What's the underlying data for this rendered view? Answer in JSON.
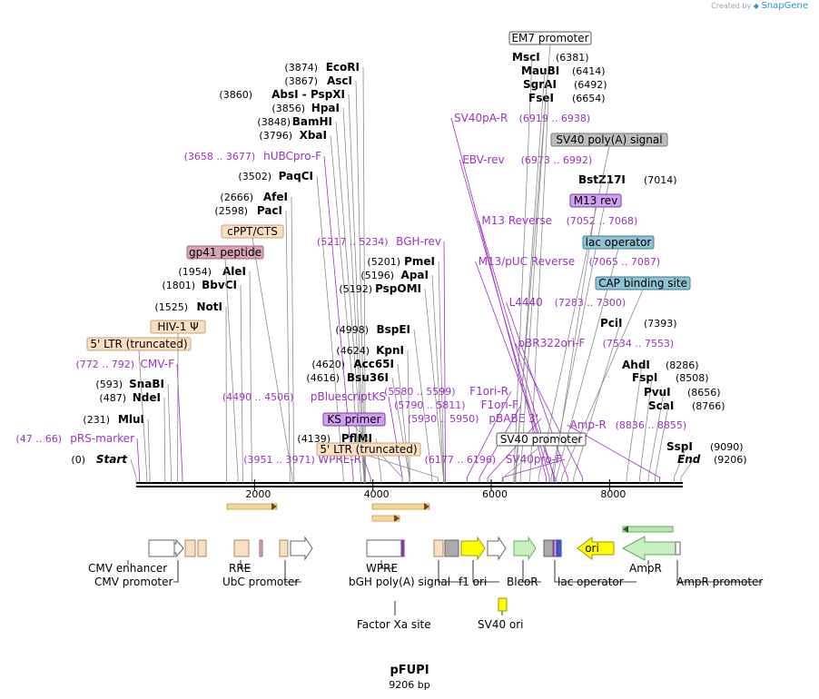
{
  "credit": {
    "prefix": "Created by",
    "brand": "SnapGene"
  },
  "plasmid": {
    "name": "pFUPI",
    "length": "9206 bp"
  },
  "colors": {
    "site": "#000000",
    "primer": "#9b30c8",
    "leader": "#7a7a7a",
    "primer_line": "#9b30c8"
  },
  "axis": {
    "ticks": [
      {
        "bp": 2000,
        "label": "2000"
      },
      {
        "bp": 4000,
        "label": "4000"
      },
      {
        "bp": 6000,
        "label": "6000"
      },
      {
        "bp": 8000,
        "label": "8000"
      }
    ]
  },
  "sites": [
    {
      "pos": "(0)",
      "name": "Start",
      "italic": true,
      "bp": 0
    },
    {
      "pos": "(231)",
      "name": "MluI",
      "bp": 231
    },
    {
      "pos": "(487)",
      "name": "NdeI",
      "bp": 487
    },
    {
      "pos": "(593)",
      "name": "SnaBI",
      "bp": 593
    },
    {
      "pos": "(1525)",
      "name": "NotI",
      "bp": 1525
    },
    {
      "pos": "(1801)",
      "name": "BbvCI",
      "bp": 1801
    },
    {
      "pos": "(1954)",
      "name": "AleI",
      "bp": 1954
    },
    {
      "pos": "(2598)",
      "name": "PacI",
      "bp": 2598
    },
    {
      "pos": "(2666)",
      "name": "AfeI",
      "bp": 2666
    },
    {
      "pos": "(3502)",
      "name": "PaqCI",
      "bp": 3502
    },
    {
      "pos": "(3796)",
      "name": "XbaI",
      "bp": 3796
    },
    {
      "pos": "(3848)",
      "name": "BamHI",
      "bp": 3848
    },
    {
      "pos": "(3856)",
      "name": "HpaI",
      "bp": 3856
    },
    {
      "pos": "(3860)",
      "name": "AbsI - PspXI",
      "bp": 3860
    },
    {
      "pos": "(3867)",
      "name": "AscI",
      "bp": 3867
    },
    {
      "pos": "(3874)",
      "name": "EcoRI",
      "bp": 3874
    },
    {
      "pos": "(4139)",
      "name": "PflMI",
      "bp": 4139
    },
    {
      "pos": "(4616)",
      "name": "Bsu36I",
      "bp": 4616
    },
    {
      "pos": "(4620)",
      "name": "Acc65I",
      "bp": 4620
    },
    {
      "pos": "(4624)",
      "name": "KpnI",
      "bp": 4624
    },
    {
      "pos": "(4998)",
      "name": "BspEI",
      "bp": 4998
    },
    {
      "pos": "(5192)",
      "name": "PspOMI",
      "bp": 5192
    },
    {
      "pos": "(5196)",
      "name": "ApaI",
      "bp": 5196
    },
    {
      "pos": "(5201)",
      "name": "PmeI",
      "bp": 5201
    },
    {
      "pos": "(6381)",
      "name": "MscI",
      "bp": 6381
    },
    {
      "pos": "(6414)",
      "name": "MauBI",
      "bp": 6414
    },
    {
      "pos": "(6492)",
      "name": "SgrAI",
      "bp": 6492
    },
    {
      "pos": "(6654)",
      "name": "FseI",
      "bp": 6654
    },
    {
      "pos": "(7014)",
      "name": "BstZ17I",
      "bp": 7014
    },
    {
      "pos": "(7393)",
      "name": "PciI",
      "bp": 7393
    },
    {
      "pos": "(8286)",
      "name": "AhdI",
      "bp": 8286
    },
    {
      "pos": "(8508)",
      "name": "FspI",
      "bp": 8508
    },
    {
      "pos": "(8656)",
      "name": "PvuI",
      "bp": 8656
    },
    {
      "pos": "(8766)",
      "name": "ScaI",
      "bp": 8766
    },
    {
      "pos": "(9090)",
      "name": "SspI",
      "bp": 9090
    },
    {
      "pos": "(9206)",
      "name": "End",
      "italic": true,
      "bp": 9206
    }
  ],
  "primers": [
    {
      "range": "(47 .. 66)",
      "name": "pRS-marker",
      "bp": 56
    },
    {
      "range": "(772 .. 792)",
      "name": "CMV-F",
      "bp": 782
    },
    {
      "range": "(3658 .. 3677)",
      "name": "hUBCpro-F",
      "bp": 3667
    },
    {
      "range": "(3951 .. 3971)",
      "name": "WPRE-R",
      "bp": 3961
    },
    {
      "range": "(4490 .. 4506)",
      "name": "pBluescriptKS",
      "bp": 4498
    },
    {
      "range": "(5217 .. 5234)",
      "name": "BGH-rev",
      "bp": 5225
    },
    {
      "range": "(5580 .. 5599)",
      "name": "F1ori-R",
      "bp": 5590
    },
    {
      "range": "(5790 .. 5811)",
      "name": "F1ori-F",
      "bp": 5800
    },
    {
      "range": "(5930 .. 5950)",
      "name": "pBABE 3'",
      "bp": 5940
    },
    {
      "range": "(6177 .. 6196)",
      "name": "SV40pro-F",
      "bp": 6187
    },
    {
      "range": "(6919 .. 6938)",
      "name": "SV40pA-R",
      "bp": 6929
    },
    {
      "range": "(6973 .. 6992)",
      "name": "EBV-rev",
      "bp": 6983
    },
    {
      "range": "(7052 .. 7068)",
      "name": "M13 Reverse",
      "bp": 7060
    },
    {
      "range": "(7065 .. 7087)",
      "name": "M13/pUC Reverse",
      "bp": 7076
    },
    {
      "range": "(7283 .. 7300)",
      "name": "L4440",
      "bp": 7292
    },
    {
      "range": "(7534 .. 7553)",
      "name": "pBR322ori-F",
      "bp": 7543
    },
    {
      "range": "(8836 .. 8855)",
      "name": "Amp-R",
      "bp": 8846
    }
  ],
  "boxed_labels": [
    {
      "name": "5' LTR (truncated)",
      "style": "ltr",
      "bp": 181
    },
    {
      "name": "HIV-1 Ψ",
      "style": "ltr",
      "bp": 700
    },
    {
      "name": "gp41 peptide",
      "style": "gp41",
      "bp": 1720
    },
    {
      "name": "cPPT/CTS",
      "style": "ltr",
      "bp": 2640
    },
    {
      "name": "KS primer",
      "style": "ks",
      "bp": 4498
    },
    {
      "name": "5' LTR (truncated)",
      "style": "ltr",
      "bp": 5100
    },
    {
      "name": "SV40 promoter",
      "style": "white",
      "bp": 6200
    },
    {
      "name": "EM7 promoter",
      "style": "white",
      "bp": 6400
    },
    {
      "name": "SV40 poly(A) signal",
      "style": "gray",
      "bp": 6800
    },
    {
      "name": "M13 rev",
      "style": "ks",
      "bp": 7050
    },
    {
      "name": "lac operator",
      "style": "blue",
      "bp": 7100
    },
    {
      "name": "CAP binding site",
      "style": "blue",
      "bp": 7190
    }
  ],
  "features": [
    {
      "name": "CMV enhancer",
      "row": 1,
      "label_pos": "below-left",
      "bp": 380
    },
    {
      "name": "CMV promoter",
      "row": 2,
      "bp": 700
    },
    {
      "name": "RRE",
      "row": 1,
      "bp": 1860
    },
    {
      "name": "UbC promoter",
      "row": 2,
      "bp": 3200
    },
    {
      "name": "WPRE",
      "row": 1,
      "bp": 4020
    },
    {
      "name": "bGH poly(A) signal",
      "row": 2,
      "bp": 5280
    },
    {
      "name": "f1 ori",
      "row": 2,
      "bp": 5720
    },
    {
      "name": "BleoR",
      "row": 2,
      "bp": 6660
    },
    {
      "name": "lac operator",
      "row": 2,
      "bp": 7100
    },
    {
      "name": "AmpR",
      "row": 1,
      "bp": 8650
    },
    {
      "name": "AmpR promoter",
      "row": 2,
      "bp": 9200
    },
    {
      "name": "ori",
      "inside": true,
      "bp": 7820
    },
    {
      "name": "Factor Xa site",
      "row": 3,
      "bp": 4650
    },
    {
      "name": "SV40 ori",
      "row": 3,
      "bp": 6100
    }
  ]
}
